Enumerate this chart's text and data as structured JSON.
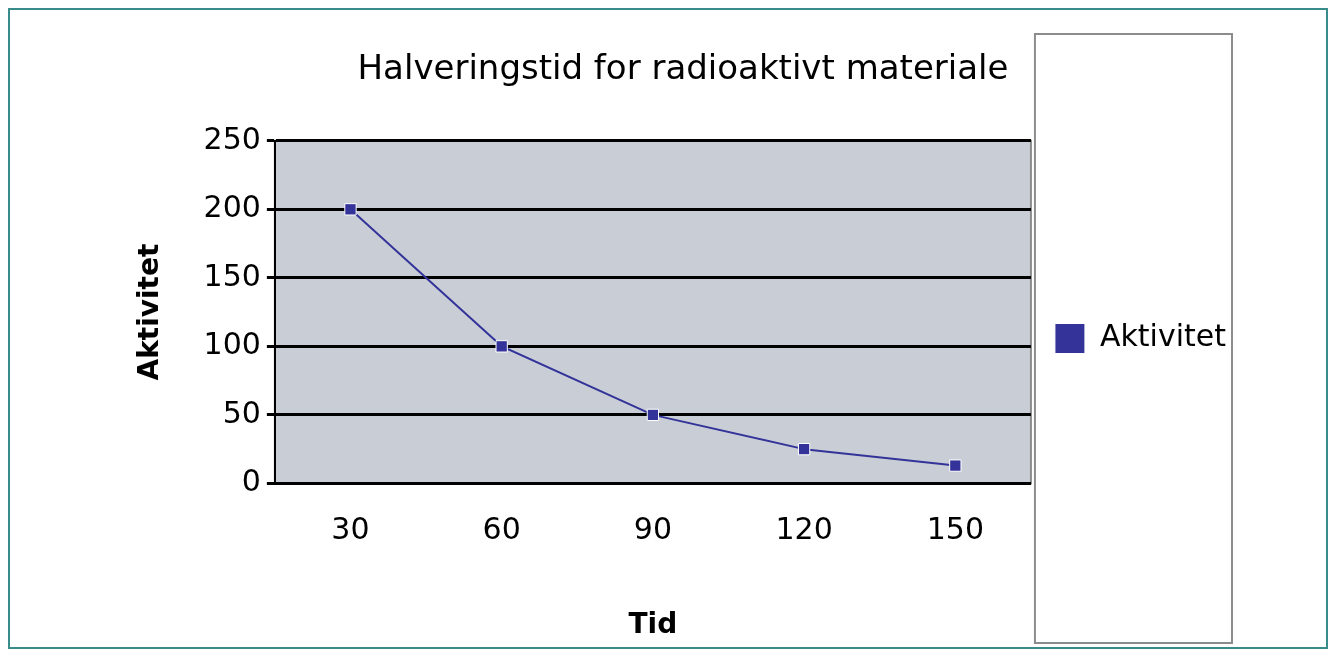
{
  "chart_data": {
    "type": "line",
    "title": "Halveringstid for radioaktivt materiale",
    "xlabel": "Tid",
    "ylabel": "Aktivitet",
    "categories": [
      "30",
      "60",
      "90",
      "120",
      "150"
    ],
    "series": [
      {
        "name": "Aktivitet",
        "color": "#333399",
        "values": [
          200,
          100,
          50,
          25,
          13
        ]
      }
    ],
    "ylim": [
      0,
      250
    ],
    "yticks": [
      0,
      50,
      100,
      150,
      200,
      250
    ],
    "grid": "y",
    "legend": "right",
    "marker": "square",
    "line_style": "solid"
  }
}
